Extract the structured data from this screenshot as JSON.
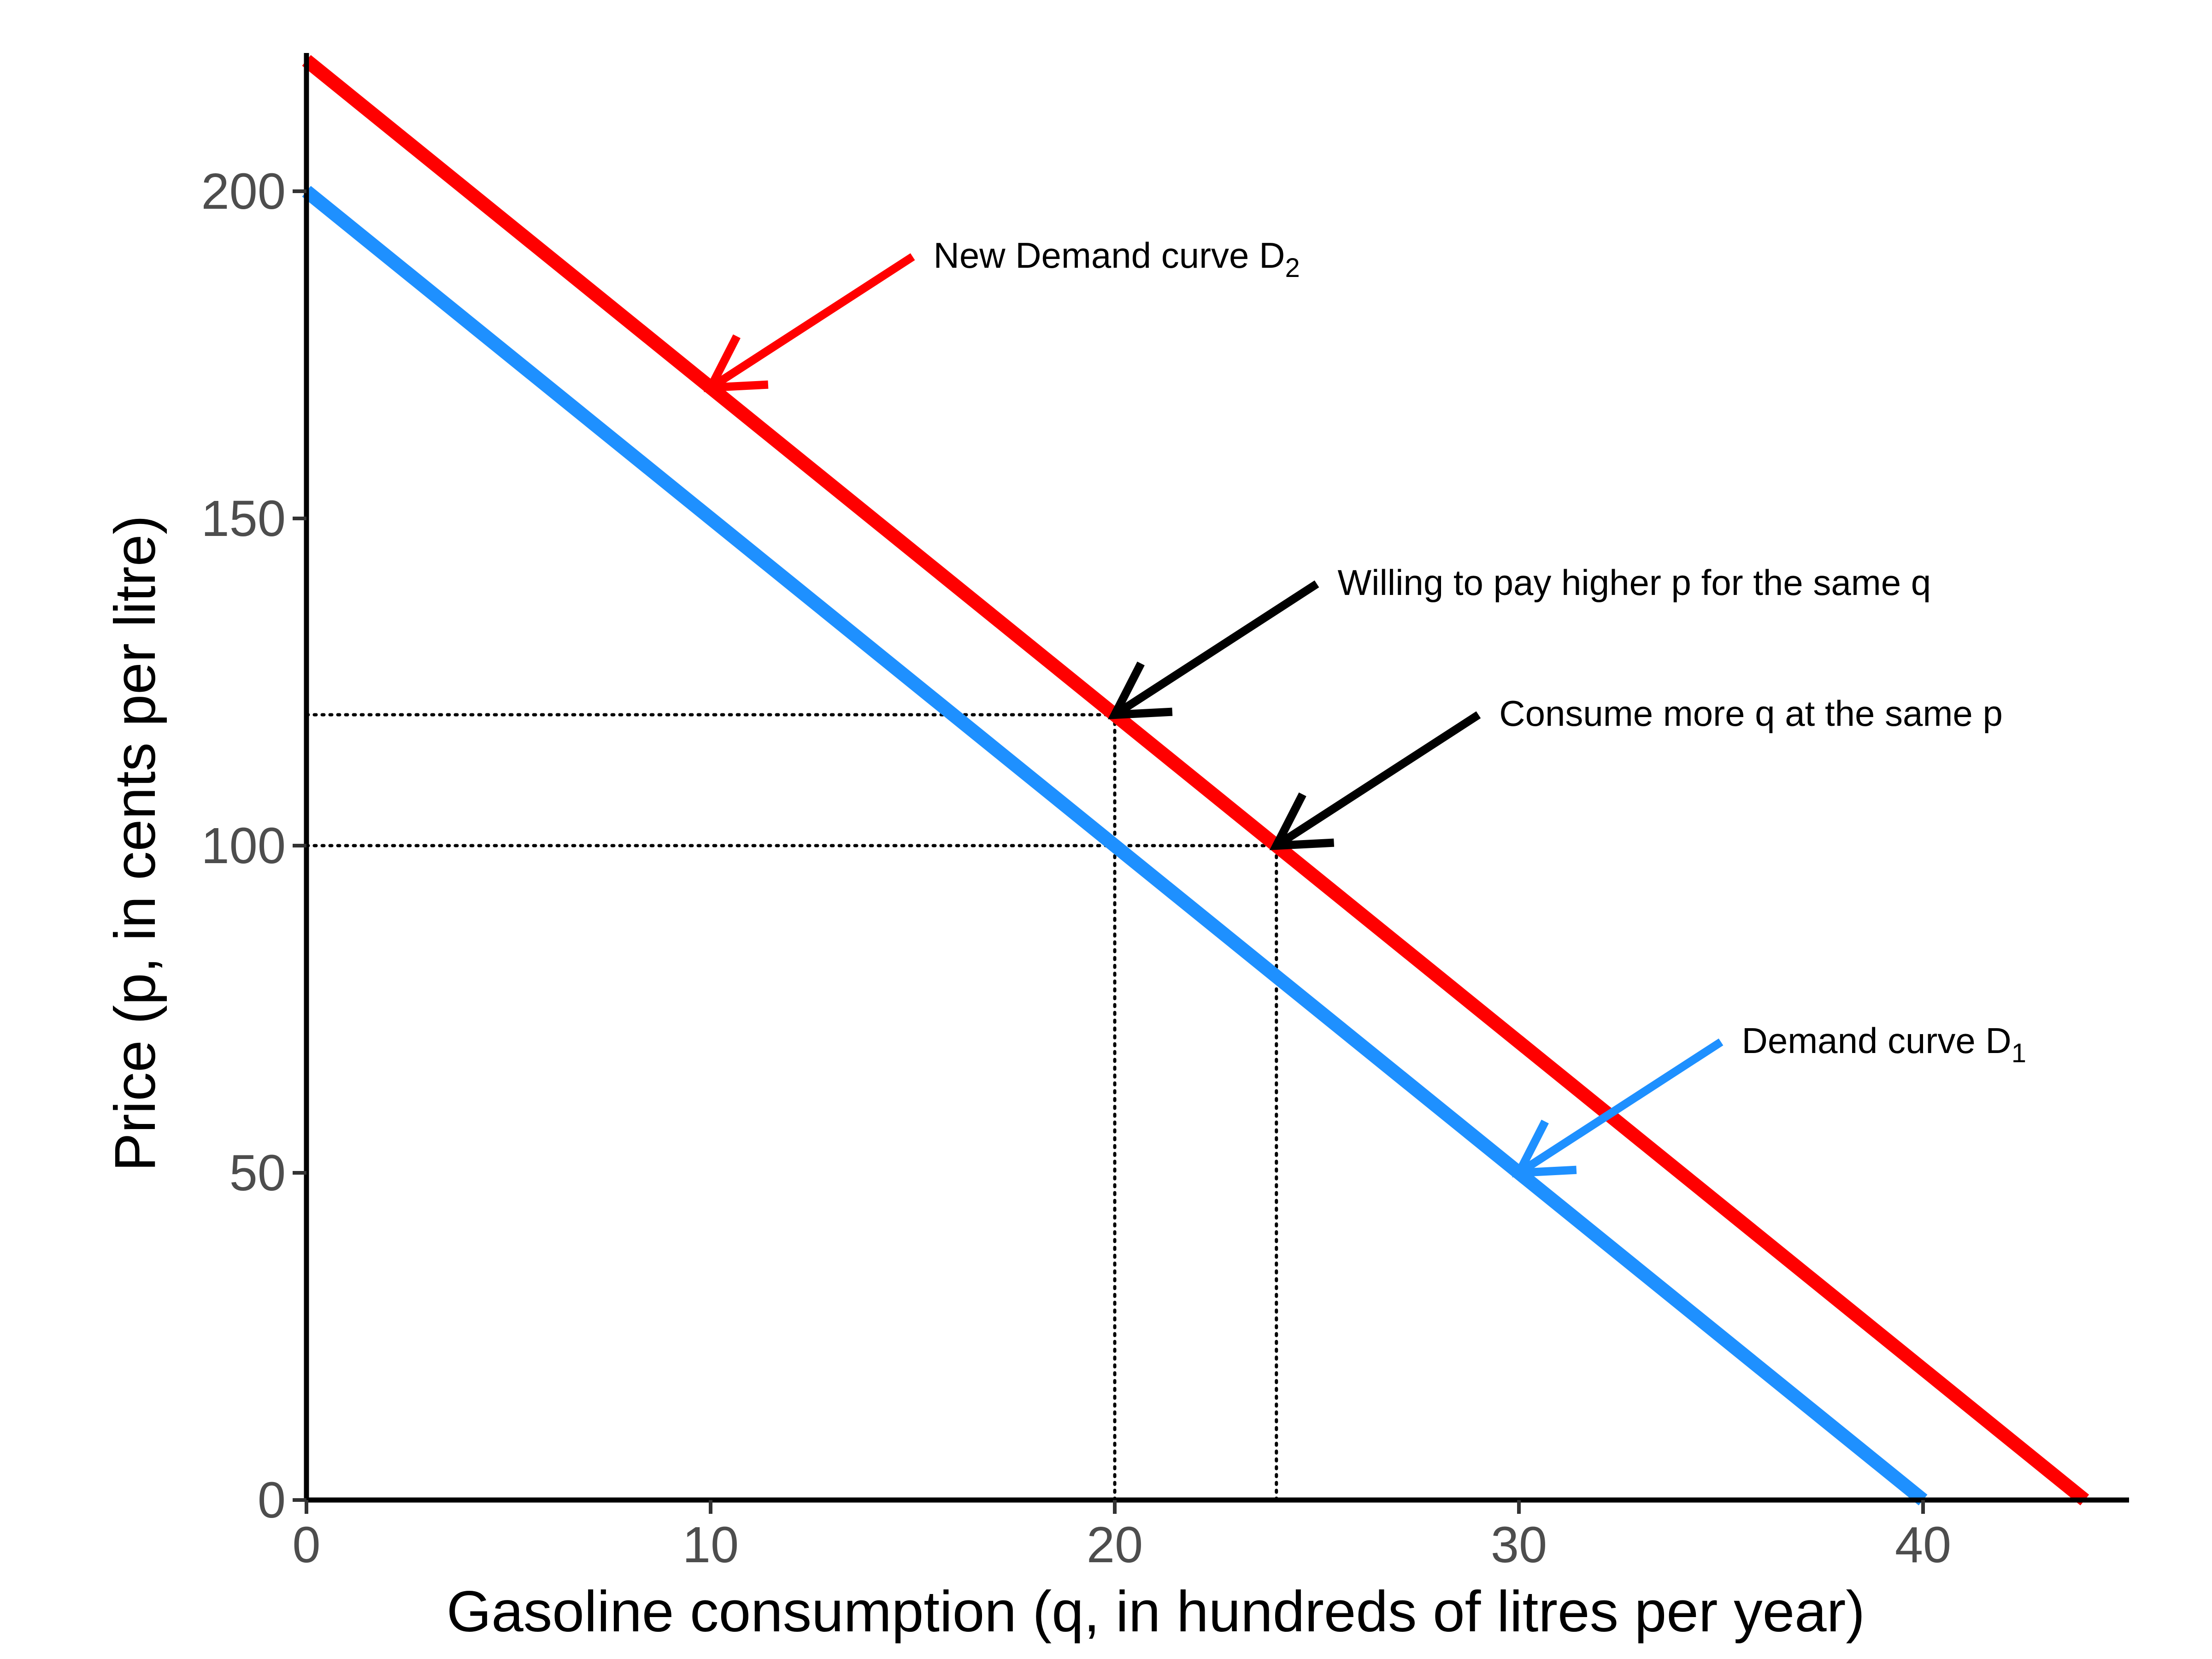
{
  "chart_data": {
    "type": "line",
    "title": "",
    "xlabel": "Gasoline consumption (q, in hundreds of litres per year)",
    "ylabel": "Price (p, in cents per litre)",
    "xlim": [
      0,
      45
    ],
    "ylim": [
      0,
      220
    ],
    "x_ticks": [
      0,
      10,
      20,
      30,
      40
    ],
    "y_ticks": [
      0,
      50,
      100,
      150,
      200
    ],
    "grid": false,
    "legend": "none",
    "series": [
      {
        "key": "d1",
        "color": "#1e90ff",
        "x": [
          0,
          40
        ],
        "y": [
          200,
          0
        ]
      },
      {
        "key": "d2",
        "color": "#ff0000",
        "x": [
          0,
          44
        ],
        "y": [
          220,
          0
        ]
      }
    ],
    "reference_lines": [
      {
        "key": "h120",
        "x": [
          0,
          20
        ],
        "y": [
          120,
          120
        ]
      },
      {
        "key": "h100",
        "x": [
          0,
          24
        ],
        "y": [
          100,
          100
        ]
      },
      {
        "key": "v20",
        "x": [
          20,
          20
        ],
        "y": [
          0,
          120
        ]
      },
      {
        "key": "v24",
        "x": [
          24,
          24
        ],
        "y": [
          0,
          100
        ]
      }
    ],
    "annotations": [
      {
        "key": "new-demand",
        "text": "New Demand curve D",
        "subscript": "2",
        "color": "#ff0000",
        "tail": [
          15,
          190
        ],
        "head": [
          10,
          170
        ]
      },
      {
        "key": "willing-to-pay",
        "text": "Willing to pay higher p for the same q",
        "subscript": "",
        "color": "#000000",
        "tail": [
          25,
          140
        ],
        "head": [
          20,
          120
        ]
      },
      {
        "key": "consume-more",
        "text": "Consume more q at the same p",
        "subscript": "",
        "color": "#000000",
        "tail": [
          29,
          120
        ],
        "head": [
          24,
          100
        ]
      },
      {
        "key": "demand-d1",
        "text": "Demand curve D",
        "subscript": "1",
        "color": "#1e90ff",
        "tail": [
          35,
          70
        ],
        "head": [
          30,
          50
        ]
      }
    ]
  }
}
